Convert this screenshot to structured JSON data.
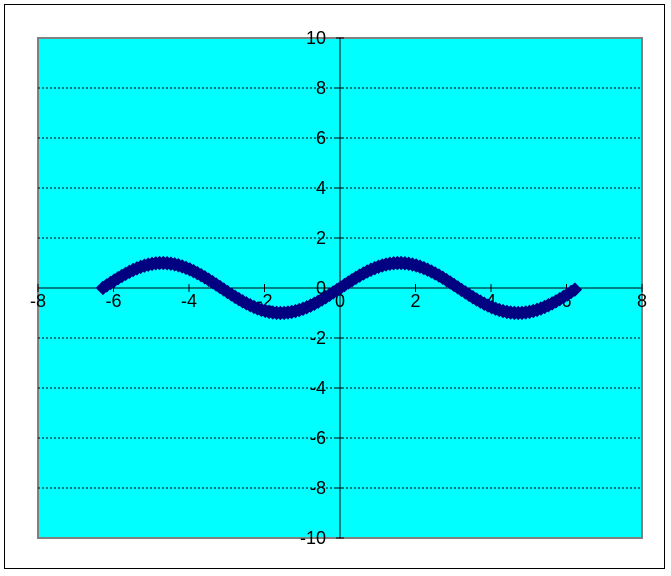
{
  "chart_data": {
    "type": "scatter",
    "title": "",
    "xlabel": "",
    "ylabel": "",
    "xlim": [
      -8,
      8
    ],
    "ylim": [
      -10,
      10
    ],
    "x_ticks": [
      -8,
      -6,
      -4,
      -2,
      0,
      2,
      4,
      6,
      8
    ],
    "y_ticks": [
      -10,
      -8,
      -6,
      -4,
      -2,
      0,
      2,
      4,
      6,
      8,
      10
    ],
    "x_tick_labels": [
      "-8",
      "-6",
      "-4",
      "-2",
      "0",
      "2",
      "4",
      "6",
      "8"
    ],
    "y_tick_labels": [
      "-10",
      "-8",
      "-6",
      "-4",
      "-2",
      "0",
      "2",
      "4",
      "6",
      "8",
      "10"
    ],
    "grid": "horizontal-dashed",
    "legend": "none",
    "colors": {
      "plot_background": "#00ffff",
      "plot_border": "#808080",
      "marker": "#000080",
      "axis": "#000000",
      "grid": "#000000"
    },
    "series": [
      {
        "marker": "diamond",
        "function": "y = sin(x)",
        "x_start": -6.28,
        "x_end": 6.28,
        "x_step": 0.1
      }
    ]
  }
}
